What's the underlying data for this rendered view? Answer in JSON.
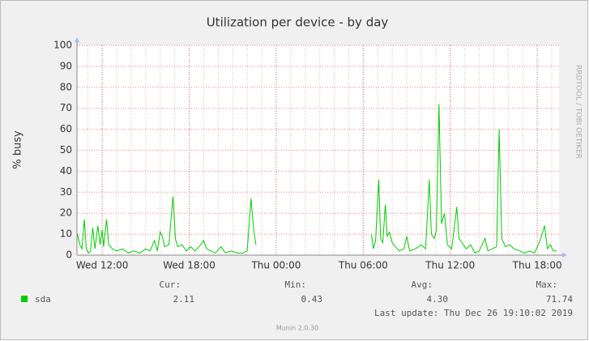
{
  "chart_data": {
    "type": "line",
    "title": "Utilization per device - by day",
    "ylabel": "% busy",
    "side_text": "RRDTOOL / TOBI OETIKER",
    "grid": true,
    "xlim": [
      10.26,
      43.5
    ],
    "xticks": [
      {
        "value": 12,
        "label": "Wed 12:00"
      },
      {
        "value": 18,
        "label": "Wed 18:00"
      },
      {
        "value": 24,
        "label": "Thu 00:00"
      },
      {
        "value": 30,
        "label": "Thu 06:00"
      },
      {
        "value": 36,
        "label": "Thu 12:00"
      },
      {
        "value": 42,
        "label": "Thu 18:00"
      }
    ],
    "ylim": [
      0,
      100
    ],
    "yticks": [
      0,
      10,
      20,
      30,
      40,
      50,
      60,
      70,
      80,
      90,
      100
    ],
    "x": [
      10.3,
      10.45,
      10.6,
      10.77,
      10.9,
      11.05,
      11.2,
      11.35,
      11.5,
      11.7,
      11.85,
      12.0,
      12.1,
      12.3,
      12.45,
      12.7,
      13.0,
      13.4,
      13.8,
      14.2,
      14.6,
      15.0,
      15.3,
      15.6,
      15.8,
      16.0,
      16.15,
      16.3,
      16.6,
      16.88,
      17.05,
      17.2,
      17.5,
      17.8,
      18.1,
      18.4,
      18.8,
      19.0,
      19.2,
      19.5,
      19.8,
      20.2,
      20.5,
      20.9,
      21.3,
      21.7,
      22.0,
      22.26,
      22.45,
      22.6,
      22.8,
      30.56,
      30.7,
      30.85,
      31.07,
      31.2,
      31.35,
      31.52,
      31.65,
      31.8,
      32.0,
      32.2,
      32.5,
      32.8,
      33.0,
      33.2,
      33.6,
      34.0,
      34.3,
      34.55,
      34.7,
      34.9,
      35.05,
      35.22,
      35.4,
      35.6,
      35.8,
      36.1,
      36.45,
      36.6,
      36.8,
      37.1,
      37.4,
      37.7,
      38.0,
      38.4,
      38.6,
      38.9,
      39.2,
      39.37,
      39.55,
      39.8,
      40.1,
      40.4,
      40.8,
      41.1,
      41.5,
      41.8,
      42.2,
      42.5,
      42.7,
      42.9,
      43.1,
      43.35
    ],
    "series": [
      {
        "name": "sda",
        "color": "#00cc00",
        "values": [
          10,
          5,
          3,
          17,
          3,
          1,
          2,
          13,
          3,
          14,
          5,
          12,
          4,
          17,
          5,
          3,
          2,
          3,
          1,
          2,
          1,
          3,
          2,
          7,
          2,
          11,
          9,
          4,
          5,
          28,
          8,
          4,
          5,
          2,
          4,
          2,
          5,
          7,
          3,
          2,
          1,
          4,
          1,
          2,
          1,
          1,
          2,
          27,
          12,
          5,
          null,
          10,
          3,
          7,
          36,
          8,
          6,
          24,
          9,
          11,
          6,
          4,
          2,
          3,
          9,
          2,
          3,
          5,
          3,
          36,
          10,
          8,
          12,
          72,
          15,
          20,
          5,
          3,
          23,
          8,
          6,
          3,
          5,
          1,
          2,
          8,
          2,
          3,
          4,
          60,
          8,
          4,
          5,
          3,
          2,
          1,
          2,
          1,
          7,
          14,
          3,
          5,
          2,
          2
        ]
      }
    ],
    "stats": {
      "headers": [
        "Cur:",
        "Min:",
        "Avg:",
        "Max:"
      ],
      "values": [
        "2.11",
        "0.43",
        "4.30",
        "71.74"
      ]
    },
    "last_update": "Last update:  Thu Dec 26 19:10:02 2019",
    "footer": "Munin 2.0.30"
  }
}
